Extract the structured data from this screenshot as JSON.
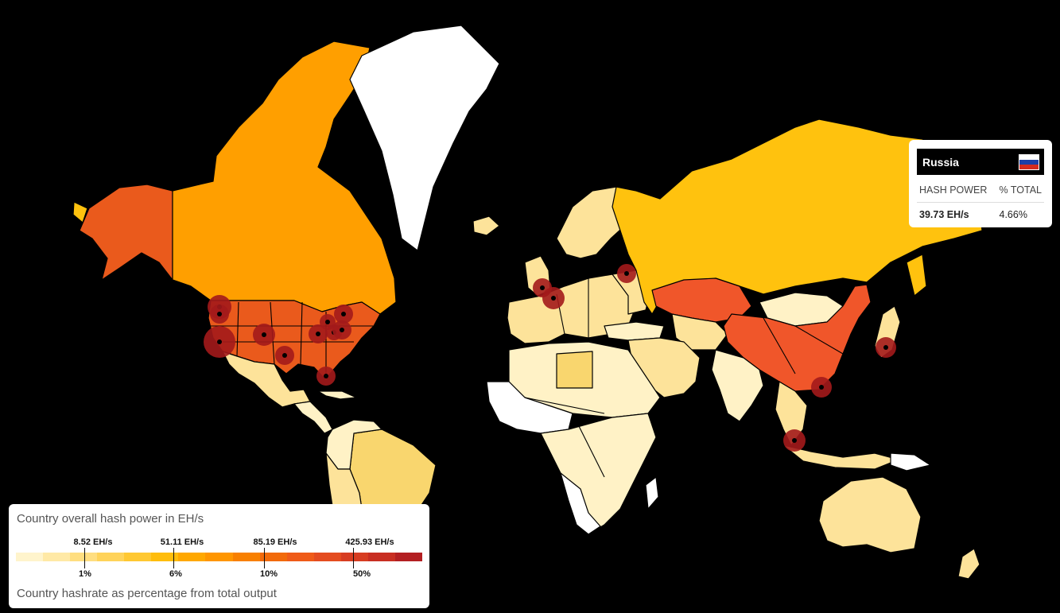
{
  "map": {
    "title": "Country overall hash power in EH/s",
    "subtitle": "Country hashrate as percentage from total output",
    "colors": {
      "ocean": "#000000",
      "no_data": "#ffffff",
      "very_low": "#fff2c6",
      "low": "#fde39a",
      "mid_low": "#f9d66e",
      "russia": "#ffc20e",
      "canada": "#ff9f00",
      "usa": "#ea5a1c",
      "china": "#f0562a",
      "pool_marker": "#a3191b"
    },
    "highlighted_countries": [
      {
        "name": "United States",
        "color_key": "usa"
      },
      {
        "name": "China",
        "color_key": "china"
      },
      {
        "name": "Russia",
        "color_key": "russia"
      },
      {
        "name": "Canada",
        "color_key": "canada"
      }
    ]
  },
  "tooltip": {
    "country": "Russia",
    "col_hash": "HASH POWER",
    "col_total": "% TOTAL",
    "hash_power": "39.73 EH/s",
    "percent_total": "4.66%",
    "flag_colors": [
      "#ffffff",
      "#1c3fa8",
      "#d52b1e"
    ]
  },
  "legend": {
    "title": "Country overall hash power in EH/s",
    "footer": "Country hashrate as percentage from total output",
    "scale_colors": [
      "#fff4cc",
      "#ffe9a6",
      "#ffde80",
      "#ffd35a",
      "#ffc832",
      "#ffbd0c",
      "#ffa800",
      "#ff9600",
      "#f88000",
      "#f26a0a",
      "#ef5b18",
      "#e44c20",
      "#d73d22",
      "#c82e22",
      "#b31f22"
    ],
    "ticks": [
      {
        "eh": "8.52 EH/s",
        "pct": "1%"
      },
      {
        "eh": "51.11 EH/s",
        "pct": "6%"
      },
      {
        "eh": "85.19 EH/s",
        "pct": "10%"
      },
      {
        "eh": "425.93 EH/s",
        "pct": "50%"
      }
    ]
  }
}
